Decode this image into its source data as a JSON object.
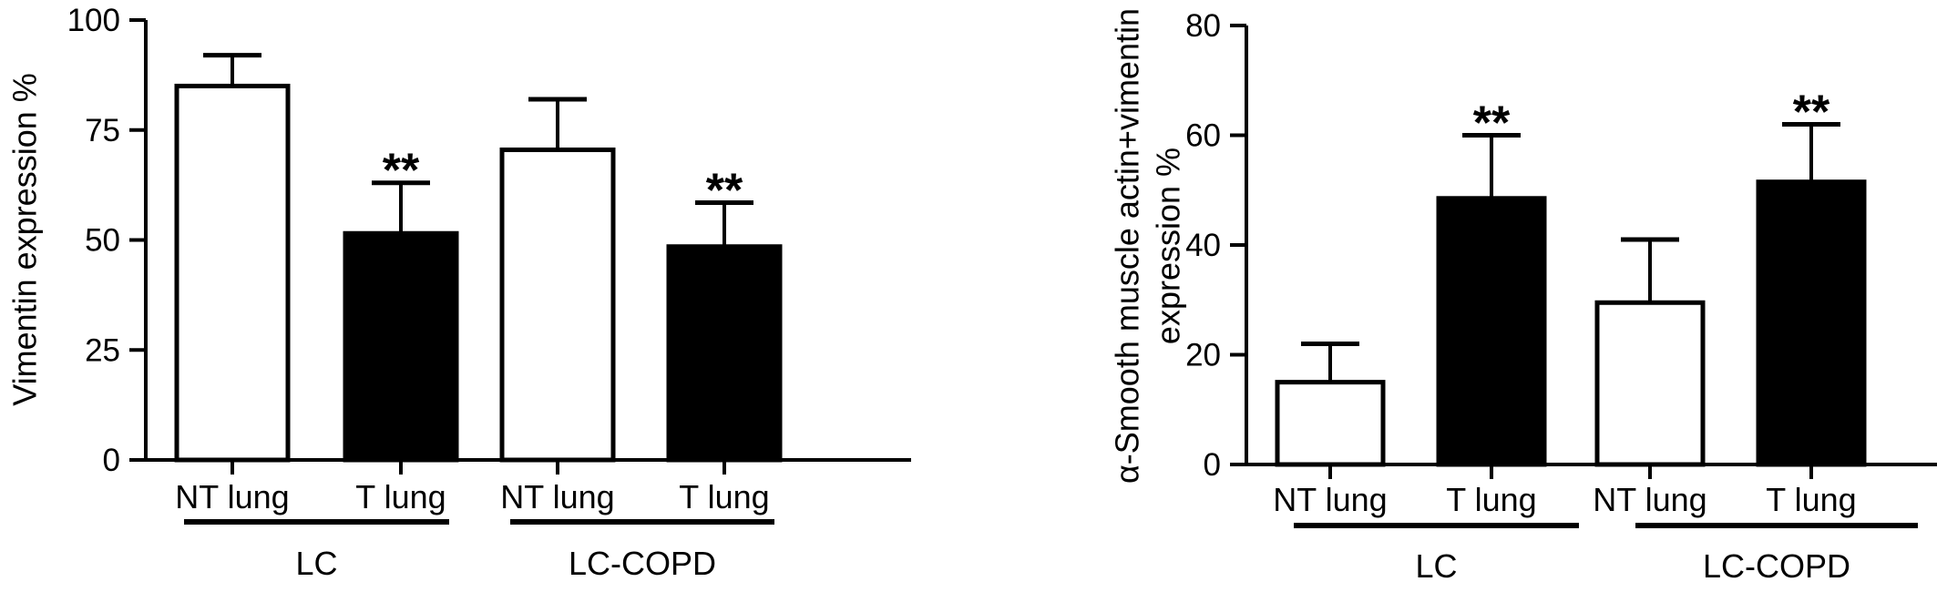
{
  "chart_data": [
    {
      "type": "bar",
      "ylabel": "Vimentin expression %",
      "ylim": [
        0,
        100
      ],
      "yticks": [
        "0",
        "25",
        "50",
        "75",
        "100"
      ],
      "categories": [
        "NT lung",
        "T lung",
        "NT lung",
        "T lung"
      ],
      "groups": [
        "LC",
        "LC-COPD"
      ],
      "values": [
        85,
        51.5,
        70.5,
        48.5
      ],
      "errors": [
        7,
        11.5,
        11.5,
        10
      ],
      "fills": [
        "white",
        "black",
        "white",
        "black"
      ],
      "significance": [
        "",
        "**",
        "",
        "**"
      ]
    },
    {
      "type": "bar",
      "ylabel": [
        "α-Smooth muscle actin+vimentin",
        "expression %"
      ],
      "ylim": [
        0,
        80
      ],
      "yticks": [
        "0",
        "20",
        "40",
        "60",
        "80"
      ],
      "categories": [
        "NT lung",
        "T lung",
        "NT lung",
        "T lung"
      ],
      "groups": [
        "LC",
        "LC-COPD"
      ],
      "values": [
        15,
        48.5,
        29.5,
        51.5
      ],
      "errors": [
        7,
        11.5,
        11.5,
        10.5
      ],
      "fills": [
        "white",
        "black",
        "white",
        "black"
      ],
      "significance": [
        "",
        "**",
        "",
        "**"
      ]
    }
  ]
}
